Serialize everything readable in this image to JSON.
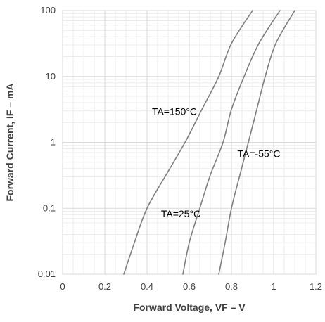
{
  "chart_data": {
    "type": "line",
    "xlabel": "Forward Voltage, VF – V",
    "ylabel": "Forward Current, IF – mA",
    "xlim": [
      0,
      1.2
    ],
    "ylim": [
      0.01,
      100
    ],
    "y_scale": "log",
    "x_ticks": [
      "0",
      "0.2",
      "0.4",
      "0.6",
      "0.8",
      "1",
      "1.2"
    ],
    "y_ticks": [
      "0.01",
      "0.1",
      "1",
      "10",
      "100"
    ],
    "grid": true,
    "colors": {
      "series": "#7f7f7f",
      "major_grid": "#d9d9d9",
      "minor_grid": "#ececec",
      "text": "#404040"
    },
    "series": [
      {
        "name": "TA=150°C",
        "points": [
          [
            0.29,
            0.01
          ],
          [
            0.34,
            0.03
          ],
          [
            0.4,
            0.1
          ],
          [
            0.49,
            0.32
          ],
          [
            0.58,
            1.0
          ],
          [
            0.66,
            3.16
          ],
          [
            0.74,
            10
          ],
          [
            0.8,
            31.6
          ],
          [
            0.9,
            100
          ]
        ]
      },
      {
        "name": "TA=25°C",
        "points": [
          [
            0.57,
            0.01
          ],
          [
            0.6,
            0.03
          ],
          [
            0.65,
            0.1
          ],
          [
            0.7,
            0.32
          ],
          [
            0.76,
            1.0
          ],
          [
            0.8,
            3.16
          ],
          [
            0.86,
            10
          ],
          [
            0.93,
            31.6
          ],
          [
            1.03,
            100
          ]
        ]
      },
      {
        "name": "TA=-55°C",
        "points": [
          [
            0.74,
            0.01
          ],
          [
            0.77,
            0.03
          ],
          [
            0.8,
            0.1
          ],
          [
            0.84,
            0.32
          ],
          [
            0.88,
            1.0
          ],
          [
            0.92,
            3.16
          ],
          [
            0.96,
            10
          ],
          [
            1.01,
            31.6
          ],
          [
            1.1,
            100
          ]
        ]
      }
    ],
    "annotations": [
      {
        "series": 0,
        "text": "TA=150°C",
        "x": 0.53,
        "y": 2.6
      },
      {
        "series": 1,
        "text": "TA=25°C",
        "x": 0.56,
        "y": 0.073
      },
      {
        "series": 2,
        "text": "TA=-55°C",
        "x": 0.93,
        "y": 0.6
      }
    ]
  }
}
